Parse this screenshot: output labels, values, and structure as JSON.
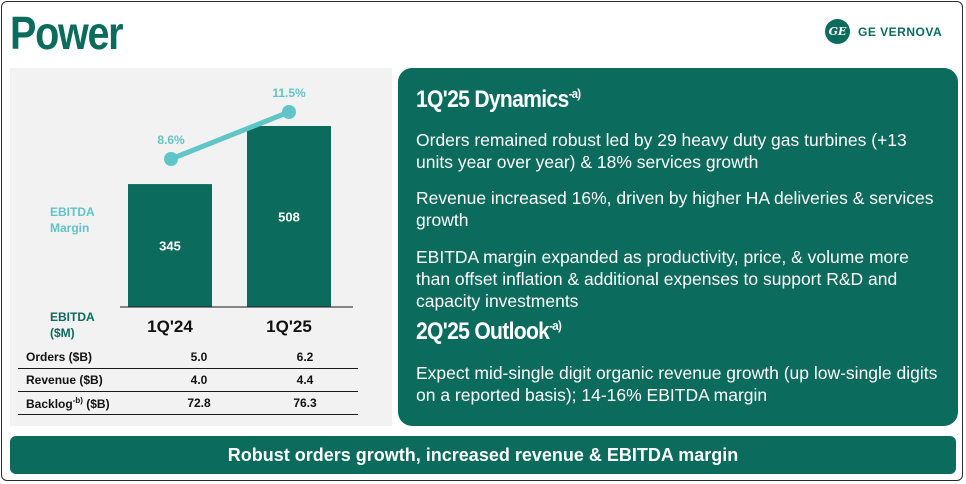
{
  "title": "Power",
  "logo": {
    "mark": "GE",
    "text": "GE VERNOVA",
    "icon": "ge-monogram-icon"
  },
  "labels": {
    "margin_line1": "EBITDA",
    "margin_line2": "Margin",
    "ebitda_line1": "EBITDA",
    "ebitda_line2": "($M)"
  },
  "chart_data": {
    "type": "bar",
    "categories": [
      "1Q'24",
      "1Q'25"
    ],
    "series": [
      {
        "name": "EBITDA ($M)",
        "values": [
          345,
          508
        ],
        "value_labels": [
          "345",
          "508"
        ],
        "color": "#0b6b5d"
      },
      {
        "name": "EBITDA Margin",
        "values": [
          8.6,
          11.5
        ],
        "value_labels": [
          "8.6%",
          "11.5%"
        ],
        "color": "#5fc5c7",
        "type": "line"
      }
    ],
    "grid": false
  },
  "table": {
    "rows": [
      {
        "label": "Orders ($B)",
        "v1": "5.0",
        "v2": "6.2"
      },
      {
        "label": "Revenue ($B)",
        "v1": "4.0",
        "v2": "4.4"
      },
      {
        "label_main": "Backlog",
        "label_sup": "-b)",
        "label_tail": " ($B)",
        "v1": "72.8",
        "v2": "76.3"
      }
    ]
  },
  "dynamics": {
    "heading": "1Q'25 Dynamics",
    "heading_sup": "-a)",
    "points": [
      "Orders remained robust led by 29 heavy duty gas turbines (+13 units year over year) & 18% services growth",
      "Revenue increased 16%, driven by higher HA deliveries & services growth",
      "EBITDA margin expanded as productivity, price, & volume more than offset inflation & additional expenses to support R&D and capacity investments"
    ]
  },
  "outlook": {
    "heading": "2Q'25 Outlook",
    "heading_sup": "-a)",
    "points": [
      "Expect mid-single digit organic revenue growth (up low-single digits on a reported basis); 14-16% EBITDA margin"
    ]
  },
  "footer": "Robust orders growth, increased revenue & EBITDA margin",
  "colors": {
    "brand": "#0b6b5d",
    "accent": "#5fc5c7",
    "panel_bg": "#f2f2f2"
  }
}
